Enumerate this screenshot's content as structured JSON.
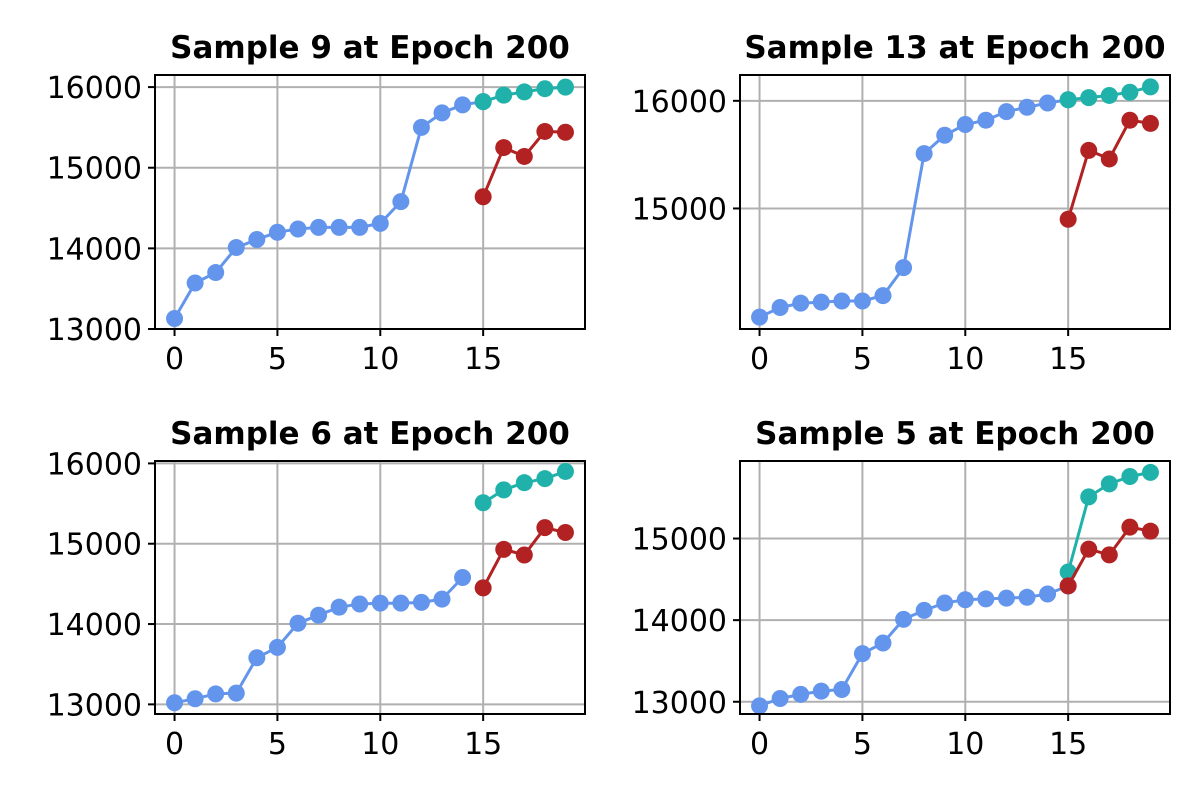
{
  "colors": {
    "history": "#6495ED",
    "forecast_a": "#20B2AA",
    "forecast_b": "#B22222",
    "grid": "#b0b0b0"
  },
  "chart_data": [
    {
      "type": "line",
      "title": "Sample 9 at Epoch 200",
      "xlabel": "",
      "ylabel": "",
      "xlim": [
        -0.95,
        19.95
      ],
      "ylim": [
        13000,
        16150
      ],
      "xticks": [
        0,
        5,
        10,
        15
      ],
      "yticks": [
        13000,
        14000,
        15000,
        16000
      ],
      "grid": true,
      "series": [
        {
          "color": "#6495ED",
          "x": [
            0,
            1,
            2,
            3,
            4,
            5,
            6,
            7,
            8,
            9,
            10,
            11,
            12,
            13,
            14,
            15
          ],
          "values": [
            13130,
            13570,
            13700,
            14010,
            14110,
            14200,
            14240,
            14260,
            14260,
            14260,
            14310,
            14580,
            15500,
            15680,
            15780,
            15820
          ]
        },
        {
          "color": "#20B2AA",
          "x": [
            15,
            16,
            17,
            18,
            19
          ],
          "values": [
            15820,
            15900,
            15940,
            15980,
            16000
          ]
        },
        {
          "color": "#B22222",
          "x": [
            15,
            16,
            17,
            18,
            19
          ],
          "values": [
            14640,
            15250,
            15140,
            15450,
            15440
          ]
        }
      ]
    },
    {
      "type": "line",
      "title": "Sample 13 at Epoch 200",
      "xlabel": "",
      "ylabel": "",
      "xlim": [
        -0.95,
        19.95
      ],
      "ylim": [
        13880,
        16240
      ],
      "xticks": [
        0,
        5,
        10,
        15
      ],
      "yticks": [
        15000,
        16000
      ],
      "grid": true,
      "series": [
        {
          "color": "#6495ED",
          "x": [
            0,
            1,
            2,
            3,
            4,
            5,
            6,
            7,
            8,
            9,
            10,
            11,
            12,
            13,
            14,
            15
          ],
          "values": [
            13990,
            14080,
            14120,
            14130,
            14140,
            14140,
            14190,
            14450,
            15510,
            15680,
            15780,
            15820,
            15900,
            15940,
            15980,
            16010
          ]
        },
        {
          "color": "#20B2AA",
          "x": [
            15,
            16,
            17,
            18,
            19
          ],
          "values": [
            16010,
            16030,
            16050,
            16080,
            16130
          ]
        },
        {
          "color": "#B22222",
          "x": [
            15,
            16,
            17,
            18,
            19
          ],
          "values": [
            14900,
            15540,
            15460,
            15820,
            15790
          ]
        }
      ]
    },
    {
      "type": "line",
      "title": "Sample 6 at Epoch 200",
      "xlabel": "",
      "ylabel": "",
      "xlim": [
        -0.95,
        19.95
      ],
      "ylim": [
        12880,
        16030
      ],
      "xticks": [
        0,
        5,
        10,
        15
      ],
      "yticks": [
        13000,
        14000,
        15000,
        16000
      ],
      "grid": true,
      "series": [
        {
          "color": "#6495ED",
          "x": [
            0,
            1,
            2,
            3,
            4,
            5,
            6,
            7,
            8,
            9,
            10,
            11,
            12,
            13,
            14
          ],
          "values": [
            13020,
            13070,
            13130,
            13140,
            13580,
            13710,
            14010,
            14110,
            14210,
            14250,
            14260,
            14260,
            14270,
            14310,
            14580
          ]
        },
        {
          "color": "#20B2AA",
          "x": [
            15,
            16,
            17,
            18,
            19
          ],
          "values": [
            15510,
            15670,
            15760,
            15810,
            15900
          ]
        },
        {
          "color": "#B22222",
          "x": [
            15,
            16,
            17,
            18,
            19
          ],
          "values": [
            14450,
            14930,
            14860,
            15200,
            15140
          ]
        }
      ]
    },
    {
      "type": "line",
      "title": "Sample 5 at Epoch 200",
      "xlabel": "",
      "ylabel": "",
      "xlim": [
        -0.95,
        19.95
      ],
      "ylim": [
        12850,
        15950
      ],
      "xticks": [
        0,
        5,
        10,
        15
      ],
      "yticks": [
        13000,
        14000,
        15000
      ],
      "grid": true,
      "series": [
        {
          "color": "#6495ED",
          "x": [
            0,
            1,
            2,
            3,
            4,
            5,
            6,
            7,
            8,
            9,
            10,
            11,
            12,
            13,
            14,
            15
          ],
          "values": [
            12950,
            13040,
            13090,
            13130,
            13150,
            13590,
            13720,
            14010,
            14120,
            14210,
            14250,
            14260,
            14270,
            14280,
            14320,
            14420
          ]
        },
        {
          "color": "#20B2AA",
          "x": [
            15,
            16,
            17,
            18,
            19
          ],
          "values": [
            14590,
            15510,
            15670,
            15760,
            15810
          ]
        },
        {
          "color": "#B22222",
          "x": [
            15,
            16,
            17,
            18,
            19
          ],
          "values": [
            14420,
            14870,
            14800,
            15140,
            15090
          ]
        }
      ]
    }
  ]
}
